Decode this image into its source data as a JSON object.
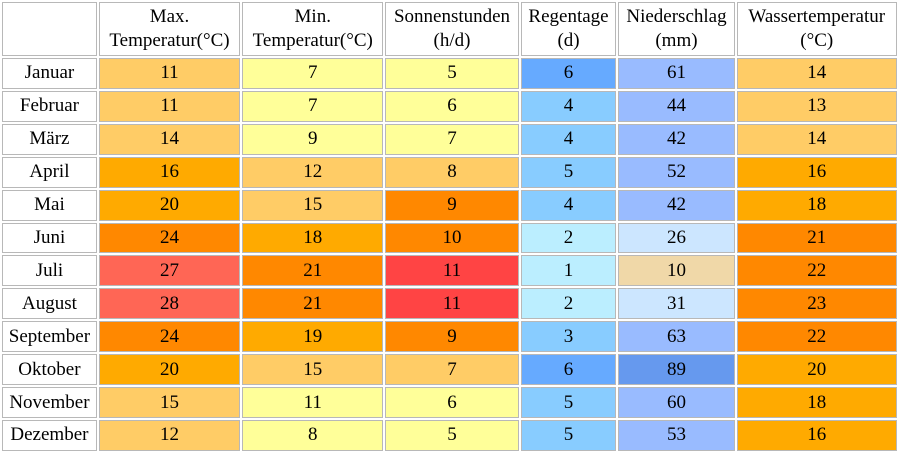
{
  "chart_data": {
    "type": "table",
    "columns": [
      {
        "line1": "",
        "line2": ""
      },
      {
        "line1": "Max.",
        "line2": "Temperatur(°C)"
      },
      {
        "line1": "Min.",
        "line2": "Temperatur(°C)"
      },
      {
        "line1": "Sonnenstunden",
        "line2": "(h/d)"
      },
      {
        "line1": "Regentage",
        "line2": "(d)"
      },
      {
        "line1": "Niederschlag",
        "line2": "(mm)"
      },
      {
        "line1": "Wassertemperatur",
        "line2": "(°C)"
      }
    ],
    "rows": [
      {
        "month": "Januar",
        "values": [
          "11",
          "7",
          "5",
          "6",
          "61",
          "14"
        ],
        "colors": [
          "#ffcc66",
          "#ffff99",
          "#ffff99",
          "#66aaff",
          "#99bbff",
          "#ffcc66"
        ]
      },
      {
        "month": "Februar",
        "values": [
          "11",
          "7",
          "6",
          "4",
          "44",
          "13"
        ],
        "colors": [
          "#ffcc66",
          "#ffff99",
          "#ffff99",
          "#88ccff",
          "#99bbff",
          "#ffcc66"
        ]
      },
      {
        "month": "März",
        "values": [
          "14",
          "9",
          "7",
          "4",
          "42",
          "14"
        ],
        "colors": [
          "#ffcc66",
          "#ffff99",
          "#ffff99",
          "#88ccff",
          "#99bbff",
          "#ffcc66"
        ]
      },
      {
        "month": "April",
        "values": [
          "16",
          "12",
          "8",
          "5",
          "52",
          "16"
        ],
        "colors": [
          "#ffaa00",
          "#ffcc66",
          "#ffcc66",
          "#88ccff",
          "#99bbff",
          "#ffaa00"
        ]
      },
      {
        "month": "Mai",
        "values": [
          "20",
          "15",
          "9",
          "4",
          "42",
          "18"
        ],
        "colors": [
          "#ffaa00",
          "#ffcc66",
          "#ff8800",
          "#88ccff",
          "#99bbff",
          "#ffaa00"
        ]
      },
      {
        "month": "Juni",
        "values": [
          "24",
          "18",
          "10",
          "2",
          "26",
          "21"
        ],
        "colors": [
          "#ff8800",
          "#ffaa00",
          "#ff8800",
          "#bbeeff",
          "#cce6ff",
          "#ff8800"
        ]
      },
      {
        "month": "Juli",
        "values": [
          "27",
          "21",
          "11",
          "1",
          "10",
          "22"
        ],
        "colors": [
          "#ff6655",
          "#ff8800",
          "#ff4444",
          "#bbeeff",
          "#f0d8a8",
          "#ff8800"
        ]
      },
      {
        "month": "August",
        "values": [
          "28",
          "21",
          "11",
          "2",
          "31",
          "23"
        ],
        "colors": [
          "#ff6655",
          "#ff8800",
          "#ff4444",
          "#bbeeff",
          "#cce6ff",
          "#ff8800"
        ]
      },
      {
        "month": "September",
        "values": [
          "24",
          "19",
          "9",
          "3",
          "63",
          "22"
        ],
        "colors": [
          "#ff8800",
          "#ffaa00",
          "#ff8800",
          "#88ccff",
          "#99bbff",
          "#ff8800"
        ]
      },
      {
        "month": "Oktober",
        "values": [
          "20",
          "15",
          "7",
          "6",
          "89",
          "20"
        ],
        "colors": [
          "#ffaa00",
          "#ffcc66",
          "#ffcc66",
          "#66aaff",
          "#6699ee",
          "#ffaa00"
        ]
      },
      {
        "month": "November",
        "values": [
          "15",
          "11",
          "6",
          "5",
          "60",
          "18"
        ],
        "colors": [
          "#ffcc66",
          "#ffff99",
          "#ffff99",
          "#88ccff",
          "#99bbff",
          "#ffaa00"
        ]
      },
      {
        "month": "Dezember",
        "values": [
          "12",
          "8",
          "5",
          "5",
          "53",
          "16"
        ],
        "colors": [
          "#ffcc66",
          "#ffff99",
          "#ffff99",
          "#88ccff",
          "#99bbff",
          "#ffaa00"
        ]
      }
    ]
  }
}
